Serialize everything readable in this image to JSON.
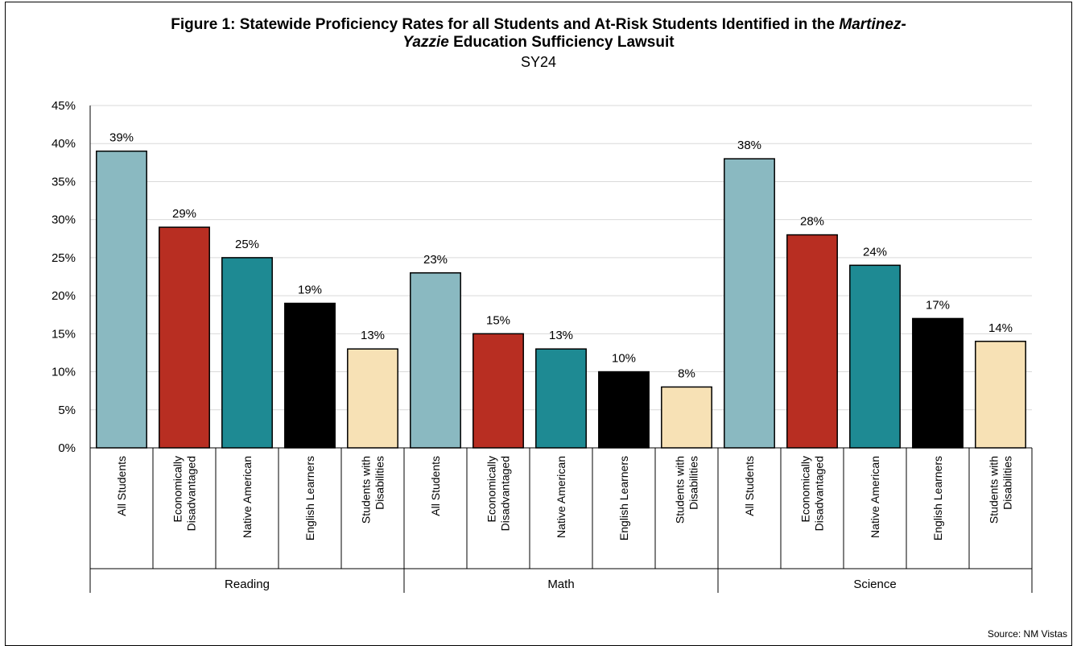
{
  "title": {
    "prefix": "Figure 1: Statewide Proficiency Rates for all Students and At-Risk Students Identified in the ",
    "italic_a": "Martinez-",
    "italic_b": "Yazzie",
    "suffix": " Education Sufficiency Lawsuit"
  },
  "subtitle": "SY24",
  "source": "Source: NM Vistas",
  "colors": {
    "All Students": "#8ab9c1",
    "Economically Disadvantaged": "#b82e22",
    "Native American": "#1e8a93",
    "English Learners": "#000000",
    "Students with Disabilities": "#f7e1b5"
  },
  "chart_data": {
    "type": "bar",
    "ylim": [
      0,
      45
    ],
    "y_ticks": [
      "0%",
      "5%",
      "10%",
      "15%",
      "20%",
      "25%",
      "30%",
      "35%",
      "40%",
      "45%"
    ],
    "grid": true,
    "groups": [
      {
        "name": "Reading",
        "bars": [
          {
            "category": "All Students",
            "label_lines": [
              "All Students"
            ],
            "value": 39,
            "label": "39%"
          },
          {
            "category": "Economically Disadvantaged",
            "label_lines": [
              "Economically",
              "Disadvantaged"
            ],
            "value": 29,
            "label": "29%"
          },
          {
            "category": "Native American",
            "label_lines": [
              "Native American"
            ],
            "value": 25,
            "label": "25%"
          },
          {
            "category": "English Learners",
            "label_lines": [
              "English Learners"
            ],
            "value": 19,
            "label": "19%"
          },
          {
            "category": "Students with Disabilities",
            "label_lines": [
              "Students with",
              "Disabilities"
            ],
            "value": 13,
            "label": "13%"
          }
        ]
      },
      {
        "name": "Math",
        "bars": [
          {
            "category": "All Students",
            "label_lines": [
              "All Students"
            ],
            "value": 23,
            "label": "23%"
          },
          {
            "category": "Economically Disadvantaged",
            "label_lines": [
              "Economically",
              "Disadvantaged"
            ],
            "value": 15,
            "label": "15%"
          },
          {
            "category": "Native American",
            "label_lines": [
              "Native American"
            ],
            "value": 13,
            "label": "13%"
          },
          {
            "category": "English Learners",
            "label_lines": [
              "English Learners"
            ],
            "value": 10,
            "label": "10%"
          },
          {
            "category": "Students with Disabilities",
            "label_lines": [
              "Students with",
              "Disabilities"
            ],
            "value": 8,
            "label": "8%"
          }
        ]
      },
      {
        "name": "Science",
        "bars": [
          {
            "category": "All Students",
            "label_lines": [
              "All Students"
            ],
            "value": 38,
            "label": "38%"
          },
          {
            "category": "Economically Disadvantaged",
            "label_lines": [
              "Economically",
              "Disadvantaged"
            ],
            "value": 28,
            "label": "28%"
          },
          {
            "category": "Native American",
            "label_lines": [
              "Native American"
            ],
            "value": 24,
            "label": "24%"
          },
          {
            "category": "English Learners",
            "label_lines": [
              "English Learners"
            ],
            "value": 17,
            "label": "17%"
          },
          {
            "category": "Students with Disabilities",
            "label_lines": [
              "Students with",
              "Disabilities"
            ],
            "value": 14,
            "label": "14%"
          }
        ]
      }
    ]
  }
}
